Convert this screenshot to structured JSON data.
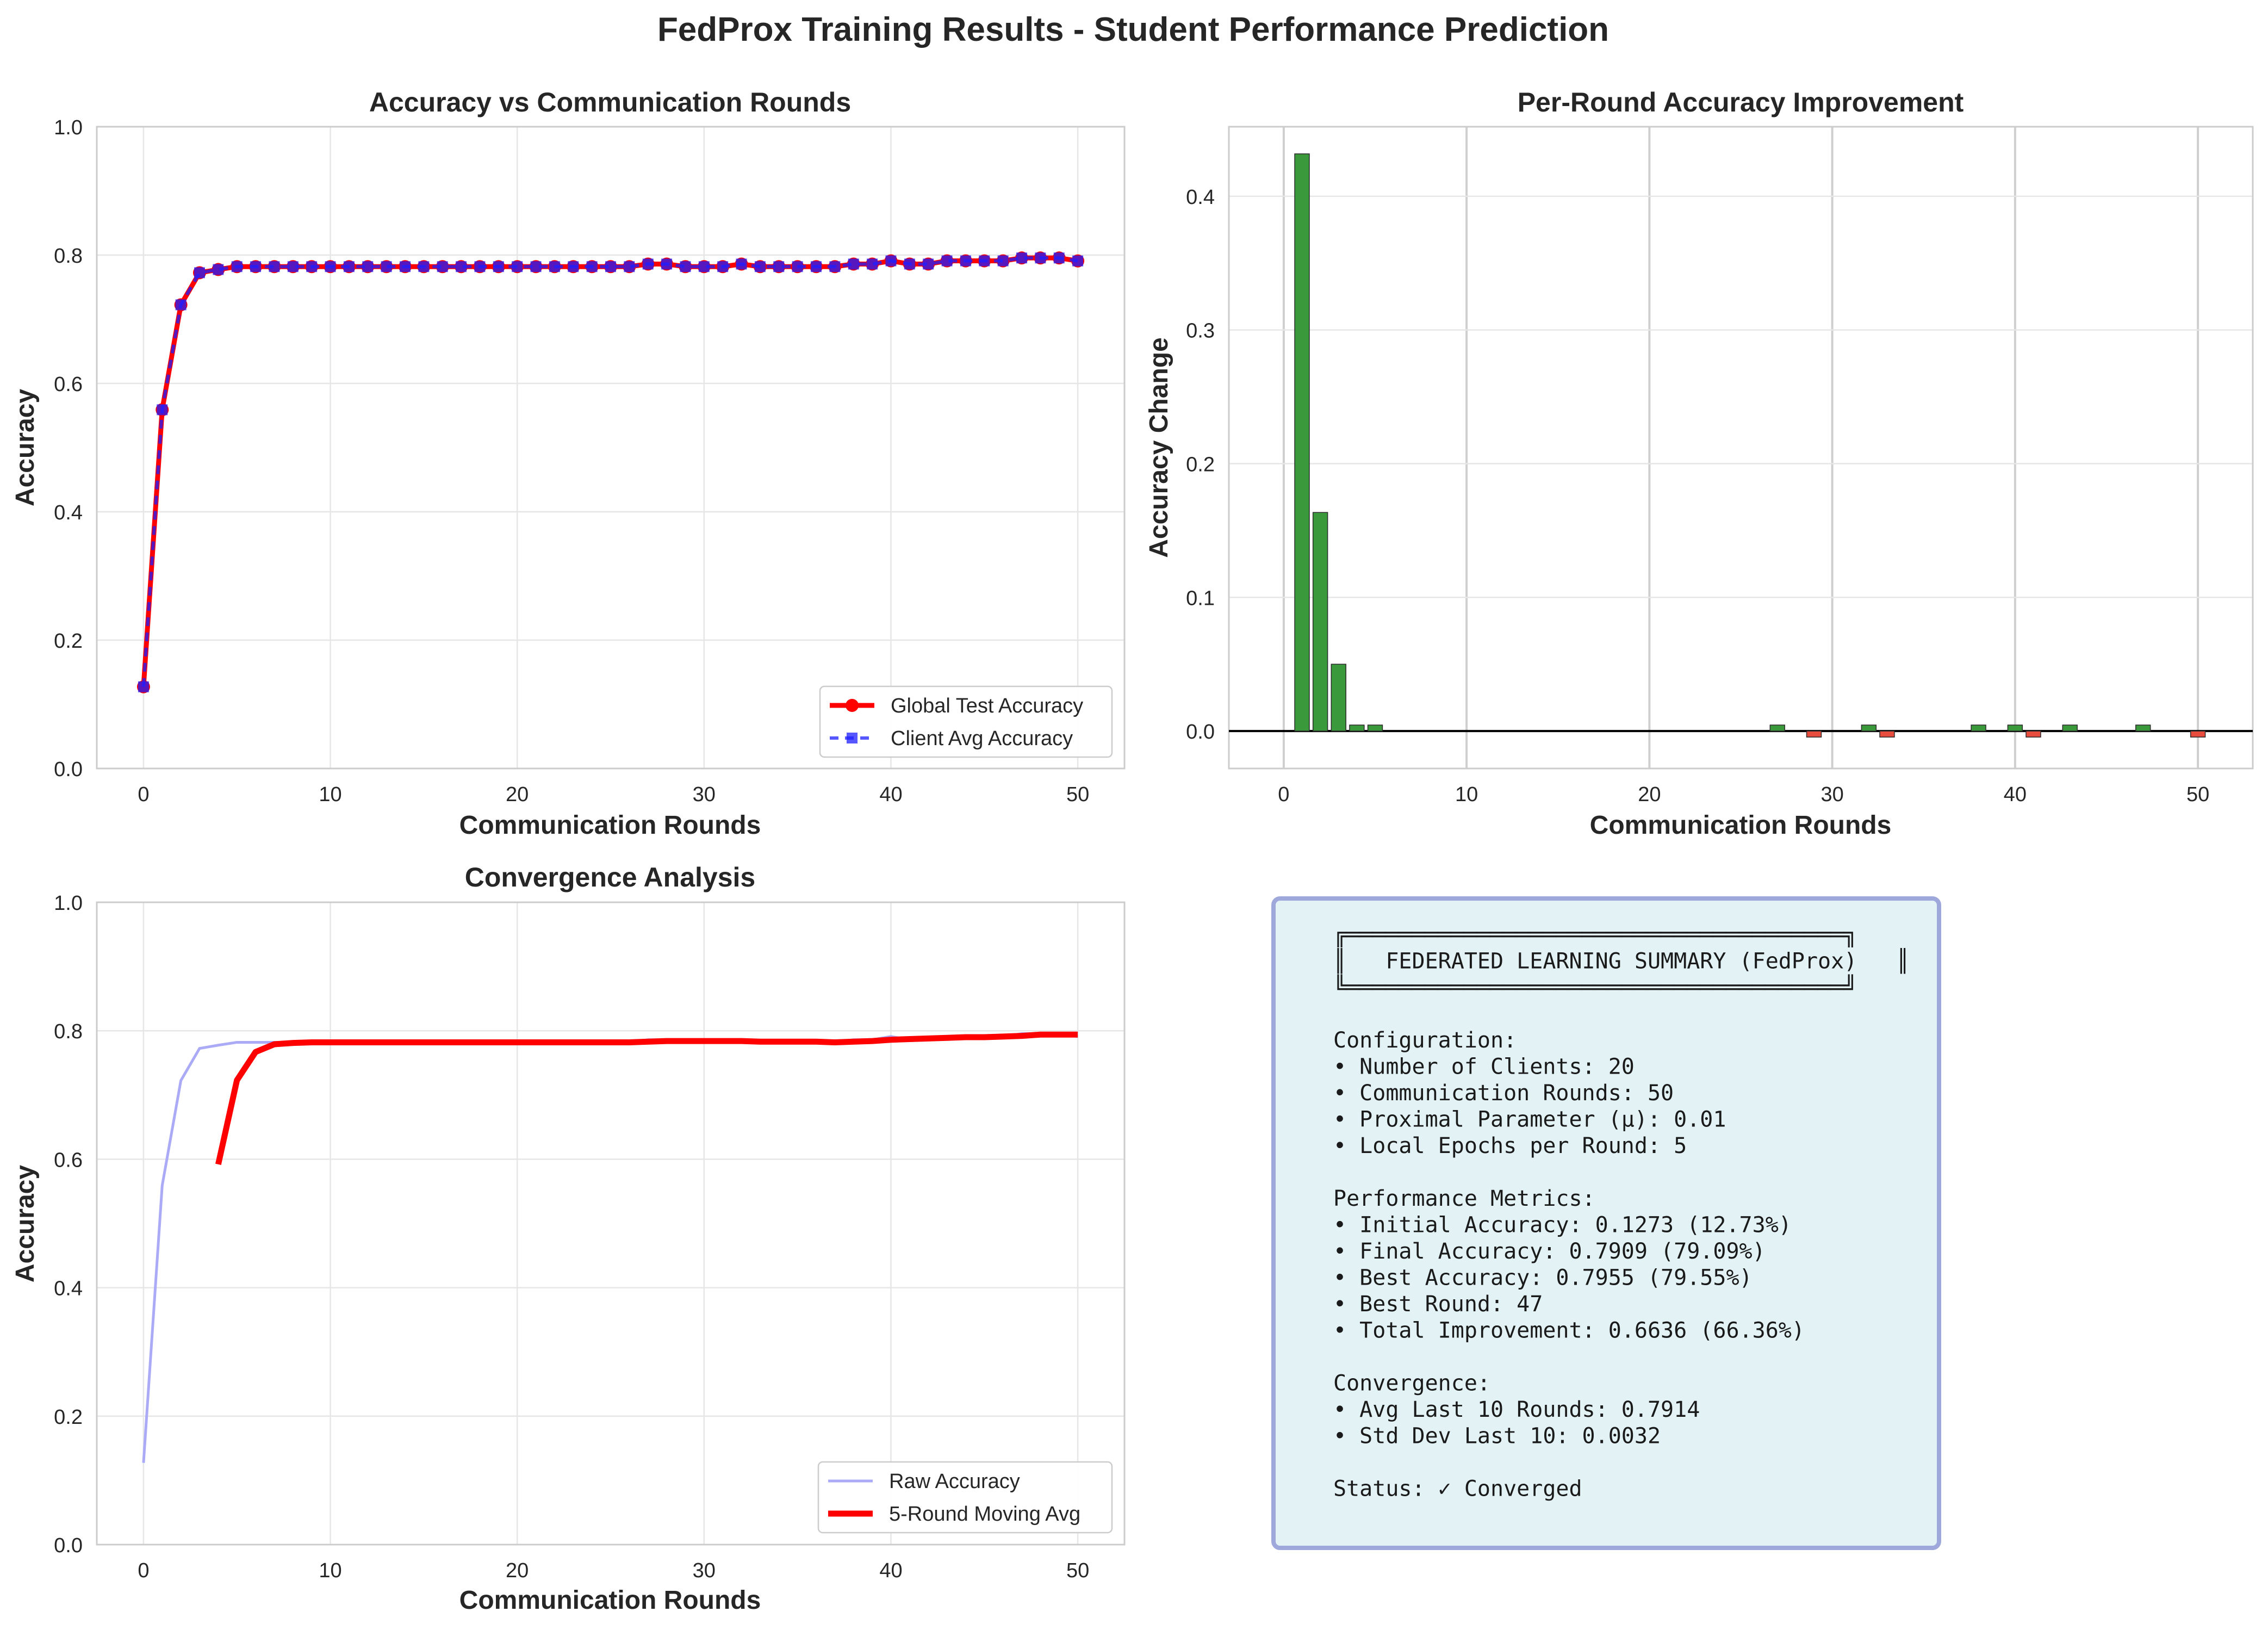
{
  "figure": {
    "title": "FedProx Training Results - Student Performance Prediction"
  },
  "colors": {
    "red": "#ff0000",
    "blue": "#1f1fff",
    "green": "#3a993a",
    "neg": "#e74c3c",
    "raw": "#aaaaf7",
    "grid": "#e6e6e6",
    "spine": "#cccccc",
    "summary_bg": "#e2f2f5",
    "summary_border": "#9fa8da"
  },
  "chart_data": [
    {
      "id": "accuracy",
      "type": "line",
      "title": "Accuracy vs Communication Rounds",
      "xlabel": "Communication Rounds",
      "ylabel": "Accuracy",
      "xlim": [
        -2.5,
        52.5
      ],
      "ylim": [
        0,
        1.0
      ],
      "xticks": [
        0,
        10,
        20,
        30,
        40,
        50
      ],
      "yticks": [
        0.0,
        0.2,
        0.4,
        0.6,
        0.8,
        1.0
      ],
      "grid": true,
      "legend": "lower-right",
      "x": [
        0,
        1,
        2,
        3,
        4,
        5,
        6,
        7,
        8,
        9,
        10,
        11,
        12,
        13,
        14,
        15,
        16,
        17,
        18,
        19,
        20,
        21,
        22,
        23,
        24,
        25,
        26,
        27,
        28,
        29,
        30,
        31,
        32,
        33,
        34,
        35,
        36,
        37,
        38,
        39,
        40,
        41,
        42,
        43,
        44,
        45,
        46,
        47,
        48,
        49,
        50
      ],
      "series": [
        {
          "name": "Global Test Accuracy",
          "color": "#ff0000",
          "marker": "circle",
          "values": [
            0.1273,
            0.559,
            0.7225,
            0.7725,
            0.7775,
            0.782,
            0.782,
            0.782,
            0.782,
            0.782,
            0.782,
            0.782,
            0.782,
            0.782,
            0.782,
            0.782,
            0.782,
            0.782,
            0.782,
            0.782,
            0.782,
            0.782,
            0.782,
            0.782,
            0.782,
            0.782,
            0.782,
            0.786,
            0.786,
            0.782,
            0.782,
            0.782,
            0.786,
            0.782,
            0.782,
            0.782,
            0.782,
            0.782,
            0.786,
            0.786,
            0.791,
            0.786,
            0.786,
            0.791,
            0.791,
            0.791,
            0.791,
            0.7955,
            0.7955,
            0.7955,
            0.7909
          ]
        },
        {
          "name": "Client Avg Accuracy",
          "color": "#1f1fff",
          "marker": "square",
          "values": [
            0.1273,
            0.559,
            0.7225,
            0.7725,
            0.7775,
            0.782,
            0.782,
            0.782,
            0.782,
            0.782,
            0.782,
            0.782,
            0.782,
            0.782,
            0.782,
            0.782,
            0.782,
            0.782,
            0.782,
            0.782,
            0.782,
            0.782,
            0.782,
            0.782,
            0.782,
            0.782,
            0.782,
            0.786,
            0.786,
            0.782,
            0.782,
            0.782,
            0.786,
            0.782,
            0.782,
            0.782,
            0.782,
            0.782,
            0.786,
            0.786,
            0.791,
            0.786,
            0.786,
            0.791,
            0.791,
            0.791,
            0.791,
            0.7955,
            0.7955,
            0.7955,
            0.7909
          ]
        }
      ]
    },
    {
      "id": "improvement",
      "type": "bar",
      "title": "Per-Round Accuracy Improvement",
      "xlabel": "Communication Rounds",
      "ylabel": "Accuracy Change",
      "xlim": [
        -3,
        53
      ],
      "ylim": [
        -0.028,
        0.452
      ],
      "xticks": [
        0,
        10,
        20,
        30,
        40,
        50
      ],
      "yticks": [
        0.0,
        0.1,
        0.2,
        0.3,
        0.4
      ],
      "grid": true,
      "x": [
        1,
        2,
        3,
        4,
        5,
        27,
        29,
        32,
        33,
        38,
        40,
        41,
        43,
        47,
        50
      ],
      "values": [
        0.4317,
        0.1635,
        0.05,
        0.0045,
        0.0045,
        0.0045,
        -0.0045,
        0.0045,
        -0.0045,
        0.0045,
        0.0045,
        -0.0045,
        0.0045,
        0.0045,
        -0.0045
      ]
    },
    {
      "id": "convergence",
      "type": "line",
      "title": "Convergence Analysis",
      "xlabel": "Communication Rounds",
      "ylabel": "Accuracy",
      "xlim": [
        -2.5,
        52.5
      ],
      "ylim": [
        0,
        1.0
      ],
      "xticks": [
        0,
        10,
        20,
        30,
        40,
        50
      ],
      "yticks": [
        0.0,
        0.2,
        0.4,
        0.6,
        0.8,
        1.0
      ],
      "grid": true,
      "legend": "lower-right",
      "series": [
        {
          "name": "Raw Accuracy",
          "color": "#aaaaf7",
          "x": [
            0,
            1,
            2,
            3,
            4,
            5,
            6,
            7,
            8,
            9,
            10,
            11,
            12,
            13,
            14,
            15,
            16,
            17,
            18,
            19,
            20,
            21,
            22,
            23,
            24,
            25,
            26,
            27,
            28,
            29,
            30,
            31,
            32,
            33,
            34,
            35,
            36,
            37,
            38,
            39,
            40,
            41,
            42,
            43,
            44,
            45,
            46,
            47,
            48,
            49,
            50
          ],
          "values": [
            0.1273,
            0.559,
            0.7225,
            0.7725,
            0.7775,
            0.782,
            0.782,
            0.782,
            0.782,
            0.782,
            0.782,
            0.782,
            0.782,
            0.782,
            0.782,
            0.782,
            0.782,
            0.782,
            0.782,
            0.782,
            0.782,
            0.782,
            0.782,
            0.782,
            0.782,
            0.782,
            0.782,
            0.786,
            0.786,
            0.782,
            0.782,
            0.782,
            0.786,
            0.782,
            0.782,
            0.782,
            0.782,
            0.782,
            0.786,
            0.786,
            0.791,
            0.786,
            0.786,
            0.791,
            0.791,
            0.791,
            0.791,
            0.7955,
            0.7955,
            0.7955,
            0.7909
          ]
        },
        {
          "name": "5-Round Moving Avg",
          "color": "#ff0000",
          "x": [
            4,
            5,
            6,
            7,
            8,
            9,
            10,
            11,
            12,
            13,
            14,
            15,
            16,
            17,
            18,
            19,
            20,
            21,
            22,
            23,
            24,
            25,
            26,
            27,
            28,
            29,
            30,
            31,
            32,
            33,
            34,
            35,
            36,
            37,
            38,
            39,
            40,
            41,
            42,
            43,
            44,
            45,
            46,
            47,
            48,
            49,
            50
          ],
          "values": [
            0.592,
            0.723,
            0.767,
            0.779,
            0.781,
            0.782,
            0.782,
            0.782,
            0.782,
            0.782,
            0.782,
            0.782,
            0.782,
            0.782,
            0.782,
            0.782,
            0.782,
            0.782,
            0.782,
            0.782,
            0.782,
            0.782,
            0.782,
            0.783,
            0.784,
            0.784,
            0.784,
            0.784,
            0.784,
            0.783,
            0.783,
            0.783,
            0.783,
            0.782,
            0.783,
            0.784,
            0.786,
            0.787,
            0.788,
            0.789,
            0.79,
            0.79,
            0.791,
            0.792,
            0.794,
            0.794,
            0.794
          ]
        }
      ]
    }
  ],
  "summary": {
    "lines": [
      "╔══════════════════════════════════════╗",
      "║   FEDERATED LEARNING SUMMARY (FedProx)   ║",
      "╚══════════════════════════════════════╝",
      "",
      "Configuration:",
      "• Number of Clients: 20",
      "• Communication Rounds: 50",
      "• Proximal Parameter (μ): 0.01",
      "• Local Epochs per Round: 5",
      "",
      "Performance Metrics:",
      "• Initial Accuracy: 0.1273 (12.73%)",
      "• Final Accuracy: 0.7909 (79.09%)",
      "• Best Accuracy: 0.7955 (79.55%)",
      "• Best Round: 47",
      "• Total Improvement: 0.6636 (66.36%)",
      "",
      "Convergence:",
      "• Avg Last 10 Rounds: 0.7914",
      "• Std Dev Last 10: 0.0032",
      "",
      "Status: ✓ Converged"
    ]
  }
}
